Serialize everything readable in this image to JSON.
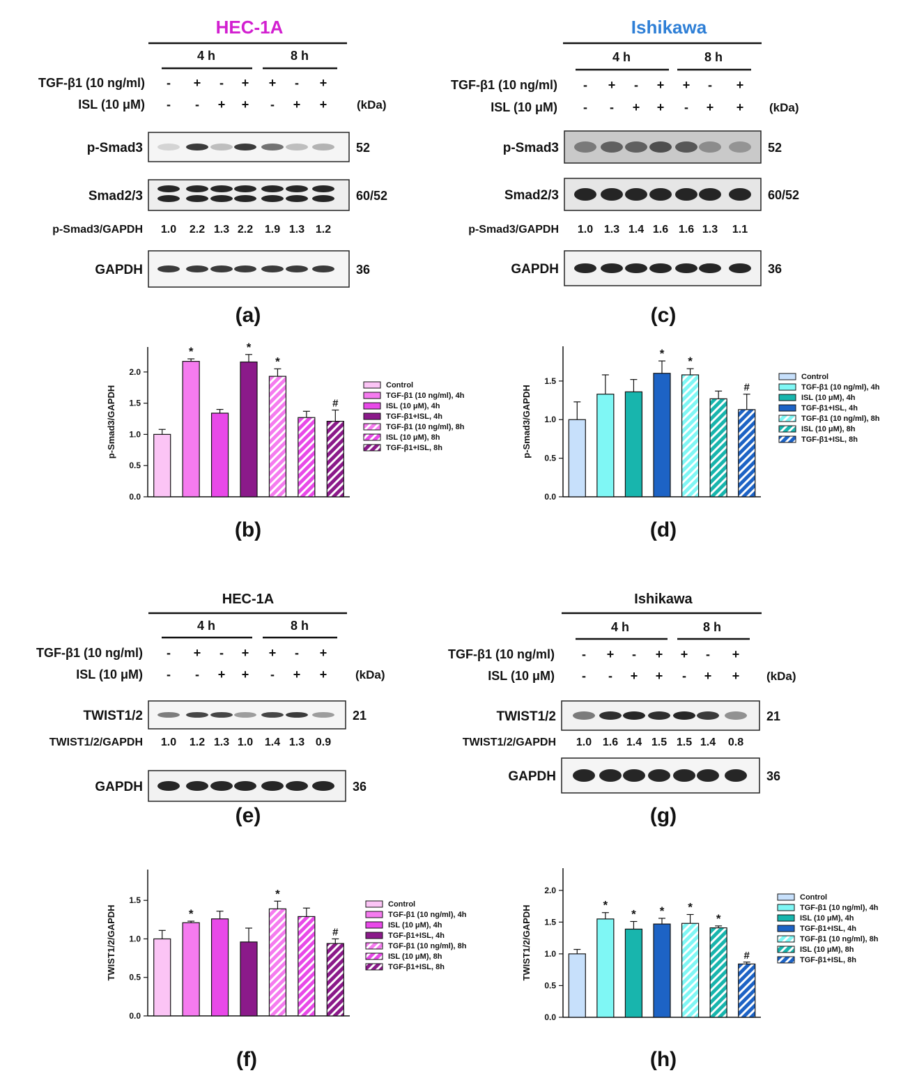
{
  "colors": {
    "control_pink": "#fbc4f5",
    "tgf_pink": "#f57bef",
    "isl_pink": "#e849e8",
    "combo_pink": "#8b1a8a",
    "control_blue": "#c7e0fb",
    "tgf_cyan": "#7ff7f5",
    "isl_teal": "#18b5ad",
    "combo_blue": "#1d63c5",
    "title_hec": "#d21fd0",
    "title_ish": "#2e7fd6",
    "blot_band": "#1a1a1a"
  },
  "common": {
    "h4": "4 h",
    "h8": "8 h",
    "tgf_row": "TGF-β1 (10 ng/ml)",
    "isl_row": "ISL (10 μM)",
    "kda": "(kDa)",
    "tgf_signs": [
      "-",
      "+",
      "-",
      "+",
      "+",
      "-",
      "+"
    ],
    "isl_signs": [
      "-",
      "-",
      "+",
      "+",
      "-",
      "+",
      "+"
    ]
  },
  "panels": {
    "a": {
      "title": "HEC-1A",
      "label": "(a)",
      "rows": [
        {
          "label": "p-Smad3",
          "kda": "52"
        },
        {
          "label": "Smad2/3",
          "kda": "60/52"
        },
        {
          "label": "GAPDH",
          "kda": "36"
        }
      ],
      "ratio_label": "p-Smad3/GAPDH",
      "ratios": [
        "1.0",
        "2.2",
        "1.3",
        "2.2",
        "1.9",
        "1.3",
        "1.2"
      ]
    },
    "c": {
      "title": "Ishikawa",
      "label": "(c)",
      "rows": [
        {
          "label": "p-Smad3",
          "kda": "52"
        },
        {
          "label": "Smad2/3",
          "kda": "60/52"
        },
        {
          "label": "GAPDH",
          "kda": "36"
        }
      ],
      "ratio_label": "p-Smad3/GAPDH",
      "ratios": [
        "1.0",
        "1.3",
        "1.4",
        "1.6",
        "1.6",
        "1.3",
        "1.1"
      ]
    },
    "e": {
      "title": "HEC-1A",
      "label": "(e)",
      "rows": [
        {
          "label": "TWIST1/2",
          "kda": "21"
        },
        {
          "label": "GAPDH",
          "kda": "36"
        }
      ],
      "ratio_label": "TWIST1/2/GAPDH",
      "ratios": [
        "1.0",
        "1.2",
        "1.3",
        "1.0",
        "1.4",
        "1.3",
        "0.9"
      ]
    },
    "g": {
      "title": "Ishikawa",
      "label": "(g)",
      "rows": [
        {
          "label": "TWIST1/2",
          "kda": "21"
        },
        {
          "label": "GAPDH",
          "kda": "36"
        }
      ],
      "ratio_label": "TWIST1/2/GAPDH",
      "ratios": [
        "1.0",
        "1.6",
        "1.4",
        "1.5",
        "1.5",
        "1.4",
        "0.8"
      ]
    }
  },
  "chart_data": [
    {
      "id": "b",
      "label": "(b)",
      "type": "bar",
      "ylabel": "p-Smad3/GAPDH",
      "ylim": [
        0,
        2.4
      ],
      "yticks": [
        "0.0",
        "0.5",
        "1.0",
        "1.5",
        "2.0"
      ],
      "categories": [
        "Control",
        "TGF-β1 (10 ng/ml), 4h",
        "ISL (10 μM), 4h",
        "TGF-β1+ISL, 4h",
        "TGF-β1 (10 ng/ml), 8h",
        "ISL (10 μM), 8h",
        "TGF-β1+ISL, 8h"
      ],
      "values": [
        1.0,
        2.17,
        1.34,
        2.16,
        1.93,
        1.27,
        1.21
      ],
      "errors": [
        0.08,
        0.04,
        0.06,
        0.12,
        0.12,
        0.1,
        0.18
      ],
      "marks": [
        "",
        "*",
        "",
        "*",
        "*",
        "",
        "#"
      ],
      "colors": [
        "#fbc4f5",
        "#f57bef",
        "#e849e8",
        "#8b1a8a",
        "#f57bef",
        "#e849e8",
        "#8b1a8a"
      ],
      "hatched": [
        false,
        false,
        false,
        false,
        true,
        true,
        true
      ],
      "legend": "right"
    },
    {
      "id": "d",
      "label": "(d)",
      "type": "bar",
      "ylabel": "p-Smad3/GAPDH",
      "ylim": [
        0,
        1.95
      ],
      "yticks": [
        "0.0",
        "0.5",
        "1.0",
        "1.5"
      ],
      "categories": [
        "Control",
        "TGF-β1 (10 ng/ml), 4h",
        "ISL (10 μM), 4h",
        "TGF-β1+ISL, 4h",
        "TGF-β1 (10 ng/ml), 8h",
        "ISL (10 μM), 8h",
        "TGF-β1+ISL, 8h"
      ],
      "values": [
        1.0,
        1.33,
        1.36,
        1.6,
        1.58,
        1.27,
        1.13
      ],
      "errors": [
        0.23,
        0.25,
        0.16,
        0.16,
        0.08,
        0.1,
        0.2
      ],
      "marks": [
        "",
        "",
        "",
        "*",
        "*",
        "",
        "#"
      ],
      "colors": [
        "#c7e0fb",
        "#7ff7f5",
        "#18b5ad",
        "#1d63c5",
        "#7ff7f5",
        "#18b5ad",
        "#1d63c5"
      ],
      "hatched": [
        false,
        false,
        false,
        false,
        true,
        true,
        true
      ],
      "legend": "right"
    },
    {
      "id": "f",
      "label": "(f)",
      "type": "bar",
      "ylabel": "TWIST1/2/GAPDH",
      "ylim": [
        0,
        1.9
      ],
      "yticks": [
        "0.0",
        "0.5",
        "1.0",
        "1.5"
      ],
      "categories": [
        "Control",
        "TGF-β1 (10 ng/ml), 4h",
        "ISL (10 μM), 4h",
        "TGF-β1+ISL, 4h",
        "TGF-β1 (10 ng/ml), 8h",
        "ISL (10 μM), 8h",
        "TGF-β1+ISL, 8h"
      ],
      "values": [
        1.0,
        1.21,
        1.26,
        0.96,
        1.39,
        1.29,
        0.94
      ],
      "errors": [
        0.11,
        0.02,
        0.1,
        0.18,
        0.1,
        0.11,
        0.06
      ],
      "marks": [
        "",
        "*",
        "",
        "",
        "*",
        "",
        "#"
      ],
      "colors": [
        "#fbc4f5",
        "#f57bef",
        "#e849e8",
        "#8b1a8a",
        "#f57bef",
        "#e849e8",
        "#8b1a8a"
      ],
      "hatched": [
        false,
        false,
        false,
        false,
        true,
        true,
        true
      ],
      "legend": "right"
    },
    {
      "id": "h",
      "label": "(h)",
      "type": "bar",
      "ylabel": "TWIST1/2/GAPDH",
      "ylim": [
        0,
        2.35
      ],
      "yticks": [
        "0.0",
        "0.5",
        "1.0",
        "1.5",
        "2.0"
      ],
      "categories": [
        "Control",
        "TGF-β1 (10 ng/ml), 4h",
        "ISL (10 μM), 4h",
        "TGF-β1+ISL, 4h",
        "TGF-β1 (10 ng/ml), 8h",
        "ISL (10 μM), 8h",
        "TGF-β1+ISL, 8h"
      ],
      "values": [
        1.0,
        1.55,
        1.39,
        1.47,
        1.48,
        1.41,
        0.84
      ],
      "errors": [
        0.07,
        0.1,
        0.12,
        0.09,
        0.14,
        0.03,
        0.03
      ],
      "marks": [
        "",
        "*",
        "*",
        "*",
        "*",
        "*",
        "#"
      ],
      "colors": [
        "#c7e0fb",
        "#7ff7f5",
        "#18b5ad",
        "#1d63c5",
        "#7ff7f5",
        "#18b5ad",
        "#1d63c5"
      ],
      "hatched": [
        false,
        false,
        false,
        false,
        true,
        true,
        true
      ],
      "legend": "right"
    }
  ]
}
